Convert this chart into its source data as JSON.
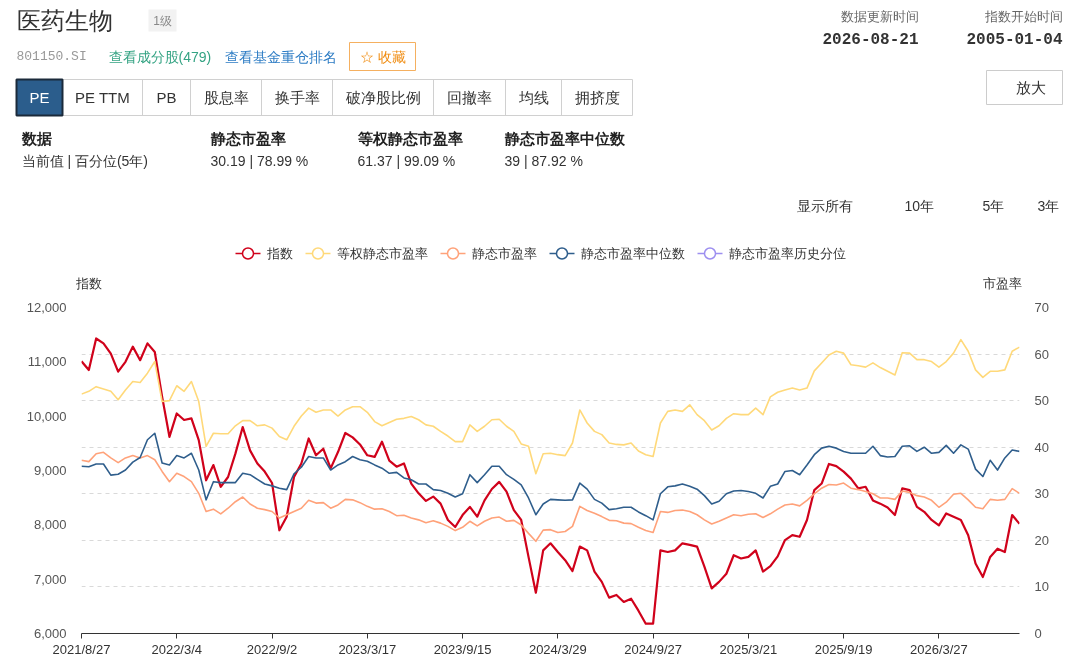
{
  "chart_data": {
    "type": "line",
    "title": "医药生物",
    "annotations": [
      "1级",
      "801150.SI",
      "查看成分股(479)",
      "查看基金重仓排名",
      "☆ 收藏",
      "数据更新时间",
      "2026-08-21",
      "指数开始时间",
      "2005-01-04",
      "放大",
      "PE",
      "PE TTM",
      "PB",
      "股息率",
      "换手率",
      "破净股比例",
      "回撤率",
      "均线",
      "拥挤度",
      "数据",
      "当前值 | 百分位(5年)",
      "静态市盈率",
      "30.19 | 78.99 %",
      "等权静态市盈率",
      "61.37 | 99.09 %",
      "静态市盈率中位数",
      "39 | 87.92 %",
      "显示所有",
      "10年",
      "5年",
      "3年"
    ],
    "ylabel": "指数",
    "y2label": "市盈率",
    "categories": [
      "2021/8/27",
      null,
      null,
      null,
      null,
      null,
      null,
      null,
      null,
      null,
      null,
      null,
      null,
      "2022/3/4",
      null,
      null,
      null,
      null,
      null,
      null,
      null,
      null,
      null,
      null,
      null,
      null,
      "2022/9/2",
      null,
      null,
      null,
      null,
      null,
      null,
      null,
      null,
      null,
      null,
      null,
      null,
      "2023/3/17",
      null,
      null,
      null,
      null,
      null,
      null,
      null,
      null,
      null,
      null,
      null,
      null,
      "2023/9/15",
      null,
      null,
      null,
      null,
      null,
      null,
      null,
      null,
      null,
      null,
      null,
      null,
      "2024/3/29",
      null,
      null,
      null,
      null,
      null,
      null,
      null,
      null,
      null,
      null,
      null,
      null,
      "2024/9/27",
      null,
      null,
      null,
      null,
      null,
      null,
      null,
      null,
      null,
      null,
      null,
      null,
      "2025/3/21",
      null,
      null,
      null,
      null,
      null,
      null,
      null,
      null,
      null,
      null,
      null,
      null,
      "2025/9/19",
      null,
      null,
      null,
      null,
      null,
      null,
      null,
      null,
      null,
      null,
      null,
      null,
      "2026/3/27",
      null,
      null,
      null,
      null,
      null,
      null,
      null,
      null,
      null,
      null,
      null
    ],
    "ylim": [
      6000,
      12000
    ],
    "yticks": [
      {
        "value": 6000,
        "label": "6,000"
      },
      {
        "value": 7000,
        "label": "7,000"
      },
      {
        "value": 8000,
        "label": "8,000"
      },
      {
        "value": 9000,
        "label": "9,000"
      },
      {
        "value": 10000,
        "label": "10,000"
      },
      {
        "value": 11000,
        "label": "11,000"
      },
      {
        "value": 12000,
        "label": "12,000"
      }
    ],
    "y2lim": [
      0,
      70
    ],
    "y2ticks": [
      0,
      10,
      20,
      30,
      40,
      50,
      60,
      70
    ],
    "grid": "y2",
    "legend": "top",
    "series": [
      {
        "name": "指数",
        "color": "#d0021b",
        "values": [
          11010,
          10850,
          11430,
          11340,
          11150,
          10820,
          11000,
          11280,
          11030,
          11340,
          11180,
          10360,
          9620,
          10050,
          9930,
          9960,
          9560,
          8820,
          9100,
          8700,
          8880,
          9310,
          9800,
          9370,
          9130,
          8980,
          8770,
          7900,
          8150,
          8880,
          9130,
          9590,
          9280,
          9400,
          9040,
          9340,
          9690,
          9610,
          9480,
          9280,
          9250,
          9530,
          9180,
          9070,
          9130,
          8760,
          8580,
          8440,
          8520,
          8390,
          8090,
          7960,
          8180,
          8330,
          8150,
          8450,
          8660,
          8790,
          8610,
          8270,
          8090,
          7410,
          6750,
          7530,
          7660,
          7500,
          7350,
          7150,
          7600,
          7530,
          7140,
          6950,
          6660,
          6710,
          6580,
          6640,
          6420,
          6180,
          6180,
          7530,
          7500,
          7530,
          7660,
          7630,
          7600,
          7230,
          6830,
          6950,
          7100,
          7440,
          7380,
          7410,
          7530,
          7140,
          7240,
          7420,
          7720,
          7810,
          7780,
          8090,
          8640,
          8760,
          9120,
          9080,
          8980,
          8850,
          8670,
          8700,
          8450,
          8390,
          8320,
          8180,
          8670,
          8640,
          8330,
          8240,
          8090,
          7990,
          8210,
          8150,
          8090,
          7810,
          7290,
          7040,
          7410,
          7560,
          7500,
          8180,
          8020
        ]
      },
      {
        "name": "等权静态市盈率",
        "color": "#ffd97a",
        "axis": "y2",
        "values": [
          51.4,
          52.0,
          53.0,
          52.5,
          52.0,
          50.2,
          52.3,
          54.1,
          53.9,
          55.9,
          58.4,
          49.8,
          50.0,
          53.2,
          52.0,
          54.1,
          49.8,
          40.2,
          43.0,
          42.9,
          42.9,
          44.6,
          45.7,
          45.7,
          44.6,
          44.8,
          44.1,
          42.3,
          41.6,
          44.5,
          46.7,
          48.4,
          47.5,
          48.0,
          48.0,
          46.7,
          48.0,
          48.7,
          48.7,
          47.5,
          45.5,
          44.6,
          45.3,
          46.0,
          46.2,
          46.6,
          45.9,
          44.8,
          44.5,
          43.4,
          42.4,
          41.2,
          41.2,
          44.8,
          43.4,
          44.5,
          45.9,
          46.0,
          44.5,
          43.4,
          40.7,
          40.2,
          34.3,
          38.6,
          38.7,
          38.4,
          38.2,
          40.9,
          48.0,
          45.2,
          43.4,
          42.7,
          40.9,
          40.6,
          40.5,
          40.9,
          39.2,
          38.4,
          38.0,
          45.2,
          47.7,
          48.0,
          47.7,
          49.1,
          47.0,
          45.7,
          43.7,
          44.6,
          46.2,
          47.2,
          47.0,
          47.0,
          48.4,
          47.0,
          50.8,
          51.8,
          52.3,
          52.7,
          52.3,
          52.7,
          56.4,
          58.1,
          59.8,
          60.6,
          60.2,
          57.7,
          57.5,
          57.2,
          58.1,
          57.1,
          56.3,
          55.5,
          60.3,
          60.2,
          58.8,
          58.8,
          58.4,
          57.2,
          58.4,
          60.2,
          63.1,
          60.6,
          56.6,
          55.0,
          56.3,
          56.3,
          56.6,
          60.6,
          61.5
        ]
      },
      {
        "name": "静态市盈率",
        "color": "#ffa27a",
        "axis": "y2",
        "values": [
          37.2,
          36.9,
          38.6,
          38.9,
          37.7,
          36.7,
          37.7,
          38.2,
          37.7,
          38.2,
          37.3,
          34.8,
          32.6,
          34.4,
          33.7,
          32.6,
          30.1,
          26.2,
          26.7,
          25.7,
          26.9,
          28.3,
          29.3,
          27.8,
          26.9,
          26.6,
          26.2,
          24.8,
          25.5,
          26.2,
          26.9,
          28.6,
          28.0,
          28.1,
          26.9,
          27.6,
          28.8,
          28.7,
          28.1,
          27.3,
          26.7,
          26.8,
          26.2,
          25.3,
          25.4,
          24.8,
          24.4,
          23.8,
          24.2,
          23.7,
          23.0,
          22.1,
          22.8,
          24.1,
          23.1,
          24.1,
          24.8,
          25.0,
          24.1,
          24.3,
          23.3,
          21.5,
          19.8,
          22.2,
          22.3,
          21.7,
          21.9,
          23.0,
          27.3,
          26.4,
          25.8,
          25.1,
          24.3,
          24.2,
          23.7,
          23.6,
          22.8,
          22.1,
          21.7,
          26.2,
          26.0,
          26.4,
          26.5,
          26.2,
          25.5,
          24.4,
          23.5,
          24.1,
          24.8,
          25.5,
          25.3,
          25.6,
          25.7,
          24.9,
          25.7,
          26.7,
          27.6,
          27.8,
          27.4,
          28.6,
          30.0,
          31.2,
          32.0,
          31.9,
          32.3,
          31.2,
          30.9,
          30.5,
          30.0,
          29.1,
          29.1,
          28.8,
          30.6,
          30.3,
          29.6,
          29.3,
          28.6,
          27.1,
          28.2,
          29.9,
          30.1,
          28.7,
          27.1,
          26.8,
          28.8,
          28.6,
          28.8,
          31.1,
          30.1
        ]
      },
      {
        "name": "静态市盈率中位数",
        "color": "#2f5e8c",
        "axis": "y2",
        "values": [
          35.9,
          35.8,
          36.4,
          36.4,
          34.0,
          34.2,
          35.1,
          36.8,
          37.8,
          41.6,
          43.0,
          36.6,
          36.2,
          38.2,
          37.7,
          38.7,
          35.1,
          28.7,
          32.6,
          32.4,
          32.4,
          32.4,
          34.4,
          34.1,
          33.1,
          32.1,
          31.7,
          31.2,
          30.9,
          34.3,
          35.7,
          38.0,
          37.7,
          37.7,
          35.1,
          36.2,
          36.9,
          38.0,
          37.3,
          37.0,
          36.2,
          35.5,
          34.4,
          34.6,
          33.4,
          33.0,
          32.1,
          32.1,
          30.9,
          30.7,
          30.1,
          29.3,
          30.0,
          34.1,
          32.4,
          34.1,
          35.9,
          35.9,
          34.1,
          33.1,
          31.9,
          29.1,
          25.5,
          27.8,
          28.8,
          28.7,
          28.6,
          28.7,
          32.3,
          31.0,
          28.8,
          28.0,
          26.6,
          26.8,
          27.1,
          27.1,
          26.1,
          25.3,
          24.4,
          30.0,
          31.5,
          31.7,
          32.1,
          31.6,
          31.0,
          29.6,
          27.8,
          28.4,
          30.0,
          30.6,
          30.7,
          30.5,
          30.1,
          29.1,
          31.6,
          32.1,
          34.8,
          35.0,
          34.1,
          36.2,
          38.4,
          39.8,
          40.2,
          39.8,
          39.1,
          38.7,
          38.7,
          38.7,
          40.2,
          38.2,
          37.9,
          38.0,
          40.2,
          40.3,
          39.1,
          40.0,
          38.7,
          38.9,
          40.4,
          38.7,
          40.5,
          39.6,
          35.3,
          33.7,
          37.2,
          35.1,
          37.7,
          39.4,
          39.1
        ]
      },
      {
        "name": "静态市盈率历史分位",
        "color": "#9d8ff0",
        "axis": "y2",
        "values": [
          null,
          null,
          null,
          null,
          null,
          null,
          null,
          null,
          null,
          null,
          null,
          null,
          null,
          null,
          null,
          null,
          null,
          null,
          null,
          null,
          null,
          null,
          null,
          null,
          null,
          null,
          null,
          null,
          null,
          null,
          null,
          null,
          null,
          null,
          null,
          null,
          null,
          null,
          null,
          null,
          null,
          null,
          null,
          null,
          null,
          null,
          null,
          null,
          null,
          null,
          null,
          null,
          null,
          null,
          null,
          null,
          null,
          null,
          null,
          null,
          null,
          null,
          null,
          null,
          null,
          null,
          null,
          null,
          null,
          null,
          null,
          null,
          null,
          null,
          null,
          null,
          null,
          null,
          null,
          null,
          null,
          null,
          null,
          null,
          null,
          null,
          null,
          null,
          null,
          null,
          null,
          null,
          null,
          null,
          null,
          null,
          null,
          null,
          null,
          null,
          null,
          null,
          null,
          null,
          null,
          null,
          null,
          null,
          null,
          null,
          null,
          null,
          null,
          null,
          null,
          null,
          null,
          null,
          null,
          null,
          null,
          null,
          null,
          null,
          null,
          null,
          null,
          null,
          null
        ]
      }
    ]
  }
}
